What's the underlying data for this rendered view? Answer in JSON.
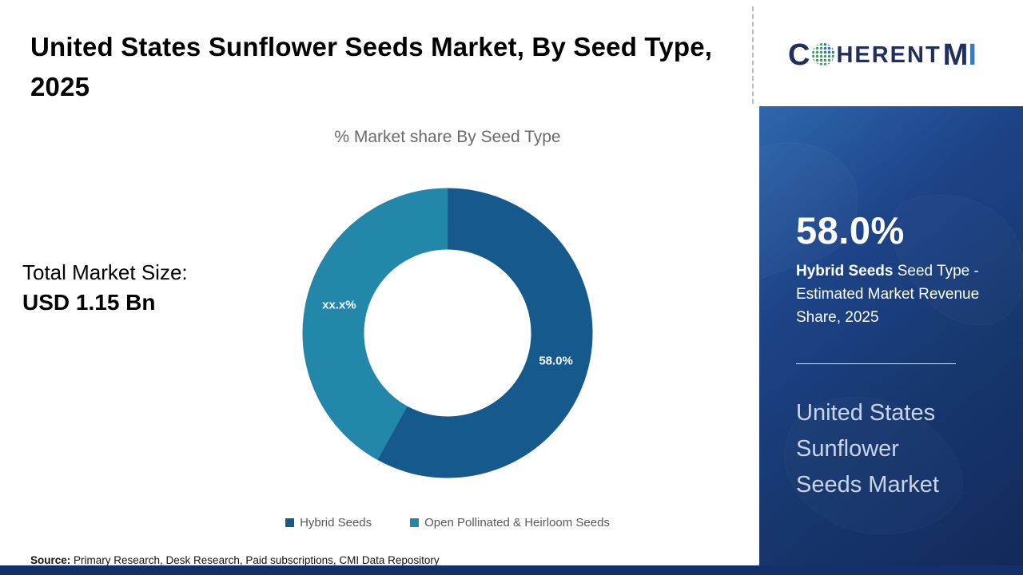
{
  "title": "United States Sunflower Seeds Market, By Seed Type, 2025",
  "logo": {
    "c": "C",
    "herent": "HERENT",
    "m": "M",
    "i": "I"
  },
  "left_stats": {
    "market_size_label": "Total Market Size:",
    "market_size_value": "USD 1.15 Bn"
  },
  "chart_data": {
    "type": "pie",
    "donut": true,
    "title": "% Market share By Seed Type",
    "labels": [
      "Hybrid Seeds",
      "Open Pollinated & Heirloom Seeds"
    ],
    "values": [
      58.0,
      42.0
    ],
    "value_labels": [
      "58.0%",
      "xx.x%"
    ],
    "colors": [
      "#15598d",
      "#2387a9"
    ],
    "start_angle": "top",
    "direction": "clockwise",
    "legend_position": "bottom"
  },
  "side_panel": {
    "share_value": "58.0%",
    "share_desc_bold": "Hybrid Seeds",
    "share_desc_rest": " Seed Type - Estimated Market Revenue Share, 2025",
    "market_name": "United States Sunflower Seeds Market"
  },
  "footer": {
    "source_label": "Source:",
    "source_text": " Primary Research, Desk Research, Paid subscriptions, CMI Data Repository"
  }
}
